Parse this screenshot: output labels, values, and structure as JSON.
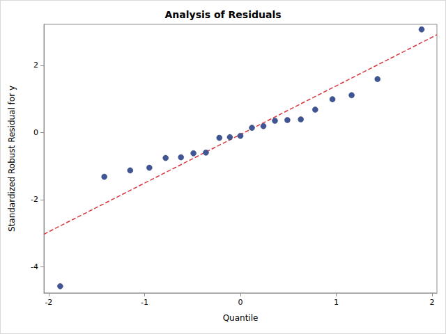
{
  "chart_data": {
    "type": "scatter",
    "title": "Analysis of Residuals",
    "x_label": "Quantile",
    "y_label": "Standardized Robust Residual for y",
    "xlim": [
      -2.05,
      2.05
    ],
    "ylim": [
      -4.78,
      3.22
    ],
    "xticks": [
      -2,
      -1,
      0,
      1,
      2
    ],
    "yticks": [
      -4,
      -2,
      0,
      2
    ],
    "grid": false,
    "series": [
      {
        "type": "scatter",
        "color": "#3f5595",
        "marker": "circle",
        "x": [
          -1.88,
          -1.42,
          -1.15,
          -0.95,
          -0.78,
          -0.62,
          -0.49,
          -0.36,
          -0.22,
          -0.11,
          0,
          0.12,
          0.24,
          0.36,
          0.49,
          0.63,
          0.78,
          0.96,
          1.16,
          1.43,
          1.89
        ],
        "values": [
          -4.58,
          -1.32,
          -1.13,
          -1.05,
          -0.76,
          -0.74,
          -0.62,
          -0.6,
          -0.16,
          -0.14,
          -0.1,
          0.14,
          0.19,
          0.35,
          0.37,
          0.39,
          0.68,
          0.99,
          1.11,
          1.59,
          3.07
        ]
      },
      {
        "type": "line",
        "color": "#d9363e",
        "line_style": "dashed",
        "x": [
          -2.05,
          2.05
        ],
        "values": [
          -3.03,
          2.91
        ]
      }
    ]
  }
}
